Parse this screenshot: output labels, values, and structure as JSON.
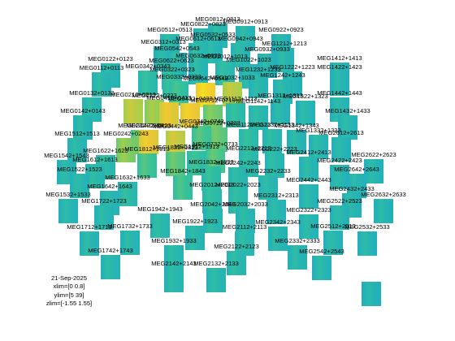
{
  "chart_data": {
    "type": "heatmap",
    "title": "",
    "info": {
      "date": "21-Sep-2025",
      "xlim": "xlim=[0 0.8]",
      "ylim": "ylim=[5 39]",
      "zlim": "zlim=[-1.55 1.55]"
    },
    "xlim": [
      0,
      0.8
    ],
    "ylim": [
      5,
      39
    ],
    "zlim": [
      -1.55,
      1.55
    ],
    "colormap": [
      "#3b2b8f",
      "#2f71d6",
      "#1aa9c9",
      "#35c29a",
      "#9ccf4e",
      "#f1c633",
      "#f9fb0e"
    ],
    "sensors": [
      {
        "label": "MEG0812+0813",
        "level": 0.06
      },
      {
        "label": "MEG0822+0823",
        "level": 0.02
      },
      {
        "label": "MEG0912+0913",
        "level": 0.04
      },
      {
        "label": "MEG0512+0513",
        "level": 0.05
      },
      {
        "label": "MEG0922+0923",
        "level": 0.02
      },
      {
        "label": "MEG0532+0533",
        "level": 0.03
      },
      {
        "label": "MEG0942+0943",
        "level": 0.05
      },
      {
        "label": "MEG0312+0313",
        "level": 0.03
      },
      {
        "label": "MEG0612+0613",
        "level": 0.06
      },
      {
        "label": "MEG1212+1213",
        "level": 0.04
      },
      {
        "label": "MEG0542+0543",
        "level": 0.05
      },
      {
        "label": "MEG0932+0933",
        "level": 0.02
      },
      {
        "label": "MEG0632+0633",
        "level": 0.05
      },
      {
        "label": "MEG1012+1013",
        "level": 0.08
      },
      {
        "label": "MEG0122+0123",
        "level": 0.04
      },
      {
        "label": "MEG0622+0623",
        "level": 0.07
      },
      {
        "label": "MEG1022+1023",
        "level": 0.03
      },
      {
        "label": "MEG1412+1413",
        "level": 0.02
      },
      {
        "label": "MEG0112+0113",
        "level": 0.05
      },
      {
        "label": "MEG0342+0343",
        "level": 0.1
      },
      {
        "label": "MEG0322+0323",
        "level": 0.12
      },
      {
        "label": "MEG1232+1233",
        "level": 0.03
      },
      {
        "label": "MEG1222+1223",
        "level": 0.02
      },
      {
        "label": "MEG1422+1423",
        "level": 0.02
      },
      {
        "label": "MEG0332+0333",
        "level": 0.16
      },
      {
        "label": "MEG0642+0643",
        "level": 0.82
      },
      {
        "label": "MEG1032+1033",
        "level": 0.55
      },
      {
        "label": "MEG1242+1243",
        "level": 0.04
      },
      {
        "label": "MEG0212+0213",
        "level": 0.55
      },
      {
        "label": "MEG0222+0223",
        "level": 0.45
      },
      {
        "label": "MEG0412+0413",
        "level": 0.7
      },
      {
        "label": "MEG0432+0433",
        "level": 0.75
      },
      {
        "label": "MEG0712+0713",
        "level": 0.35
      },
      {
        "label": "MEG1112+1113",
        "level": 0.1
      },
      {
        "label": "MEG1142+1143",
        "level": 0.06
      },
      {
        "label": "MEG1312+1313",
        "level": 0.03
      },
      {
        "label": "MEG1322+1323",
        "level": 0.03
      },
      {
        "label": "MEG1442+1443",
        "level": 0.03
      },
      {
        "label": "MEG0132+0133",
        "level": 0.05
      },
      {
        "label": "MEG0142+0143",
        "level": 0.04
      },
      {
        "label": "MEG1432+1433",
        "level": 0.03
      },
      {
        "label": "MEG0232+0233",
        "level": 0.3
      },
      {
        "label": "MEG0242+0243",
        "level": 0.4
      },
      {
        "label": "MEG0422+0423",
        "level": 0.72
      },
      {
        "label": "MEG0442+0443",
        "level": 0.6
      },
      {
        "label": "MEG0722+0723",
        "level": 0.3
      },
      {
        "label": "MEG0732+0733",
        "level": 0.25
      },
      {
        "label": "MEG0742+0743",
        "level": 0.22
      },
      {
        "label": "MEG1122+1123",
        "level": 0.1
      },
      {
        "label": "MEG1132+1133",
        "level": 0.06
      },
      {
        "label": "MEG1342+1343",
        "level": 0.04
      },
      {
        "label": "MEG1332+1333",
        "level": 0.04
      },
      {
        "label": "MEG2612+2613",
        "level": 0.02
      },
      {
        "label": "MEG1512+1513",
        "level": 0.05
      },
      {
        "label": "MEG1542+1543",
        "level": 0.03
      },
      {
        "label": "MEG1622+1623",
        "level": 0.08
      },
      {
        "label": "MEG1812+1813",
        "level": 0.2
      },
      {
        "label": "MEG1822+1823",
        "level": 0.28
      },
      {
        "label": "MEG1912+1913",
        "level": 0.14
      },
      {
        "label": "MEG1642+1643",
        "level": 0.04
      },
      {
        "label": "MEG2212+2213",
        "level": 0.08
      },
      {
        "label": "MEG2222+2223",
        "level": 0.06
      },
      {
        "label": "MEG2412+2413",
        "level": 0.04
      },
      {
        "label": "MEG2422+2423",
        "level": 0.03
      },
      {
        "label": "MEG2622+2623",
        "level": 0.02
      },
      {
        "label": "MEG1612+1613",
        "level": 0.06
      },
      {
        "label": "MEG1522+1523",
        "level": 0.04
      },
      {
        "label": "MEG1632+1633",
        "level": 0.08
      },
      {
        "label": "MEG1842+1843",
        "level": 0.18
      },
      {
        "label": "MEG1832+1833",
        "level": 0.12
      },
      {
        "label": "MEG2242+2243",
        "level": 0.06
      },
      {
        "label": "MEG2232+2233",
        "level": 0.05
      },
      {
        "label": "MEG2442+2443",
        "level": 0.03
      },
      {
        "label": "MEG2642+2643",
        "level": 0.02
      },
      {
        "label": "MEG1532+1533",
        "level": 0.03
      },
      {
        "label": "MEG1722+1723",
        "level": 0.04
      },
      {
        "label": "MEG2012+2013",
        "level": 0.1
      },
      {
        "label": "MEG2022+2023",
        "level": 0.08
      },
      {
        "label": "MEG2432+2433",
        "level": 0.03
      },
      {
        "label": "MEG2632+2633",
        "level": 0.02
      },
      {
        "label": "MEG1942+1943",
        "level": 0.06
      },
      {
        "label": "MEG2042+2043",
        "level": 0.06
      },
      {
        "label": "MEG2032+2033",
        "level": 0.05
      },
      {
        "label": "MEG2312+2313",
        "level": 0.04
      },
      {
        "label": "MEG2522+2523",
        "level": 0.03
      },
      {
        "label": "MEG1922+1923",
        "level": 0.05
      },
      {
        "label": "MEG2322+2323",
        "level": 0.03
      },
      {
        "label": "MEG1712+1713",
        "level": 0.04
      },
      {
        "label": "MEG1732+1733",
        "level": 0.04
      },
      {
        "label": "MEG2112+2113",
        "level": 0.06
      },
      {
        "label": "MEG2342+2343",
        "level": 0.04
      },
      {
        "label": "MEG2512+2513",
        "level": 0.03
      },
      {
        "label": "MEG2532+2533",
        "level": 0.02
      },
      {
        "label": "MEG1932+1933",
        "level": 0.05
      },
      {
        "label": "MEG2122+2123",
        "level": 0.06
      },
      {
        "label": "MEG2332+2333",
        "level": 0.04
      },
      {
        "label": "MEG1742+1743",
        "level": 0.04
      },
      {
        "label": "MEG2542+2543",
        "level": 0.03
      },
      {
        "label": "MEG2142+2143",
        "level": 0.05
      },
      {
        "label": "MEG2132+2133",
        "level": 0.05
      }
    ],
    "scale_tile": {
      "level": 0.0
    }
  }
}
